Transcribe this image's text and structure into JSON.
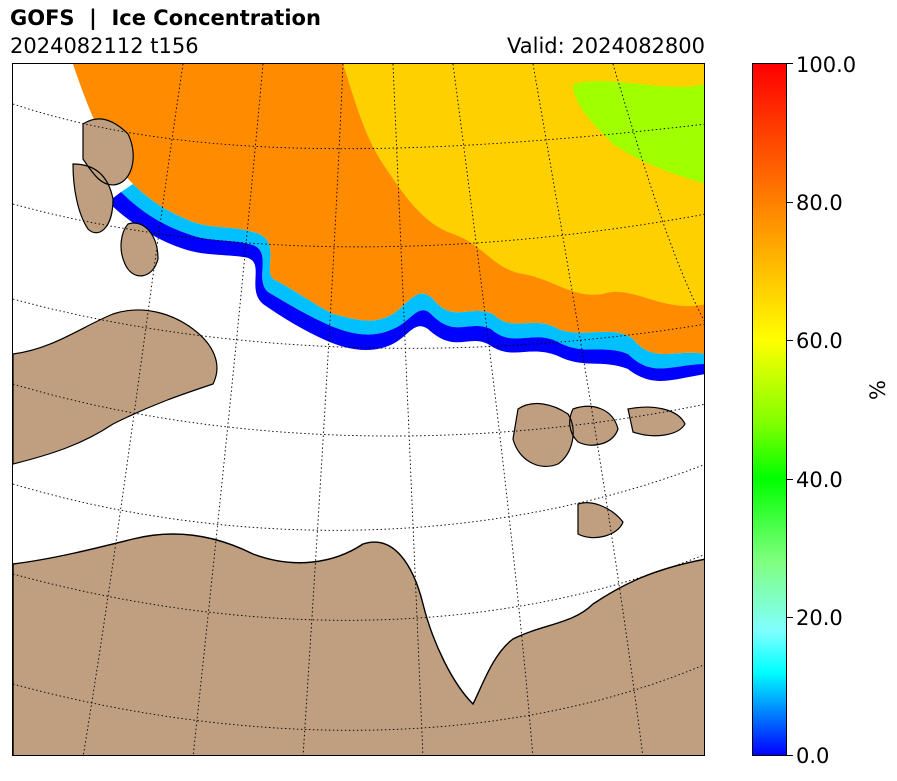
{
  "header": {
    "title": "GOFS  |  Ice Concentration",
    "run": "2024082112 t156",
    "valid": "Valid: 2024082800"
  },
  "colorbar": {
    "unit": "%",
    "ticks": [
      "100.0",
      "80.0",
      "60.0",
      "40.0",
      "20.0",
      "0.0"
    ],
    "range": [
      0,
      100
    ]
  },
  "map": {
    "variable": "Sea ice concentration",
    "land_color": "#bf9f80",
    "ocean_color": "#ffffff",
    "colormap": [
      "#0000ff",
      "#00ffff",
      "#00ff00",
      "#ffff00",
      "#ff8000",
      "#ff0000"
    ]
  }
}
